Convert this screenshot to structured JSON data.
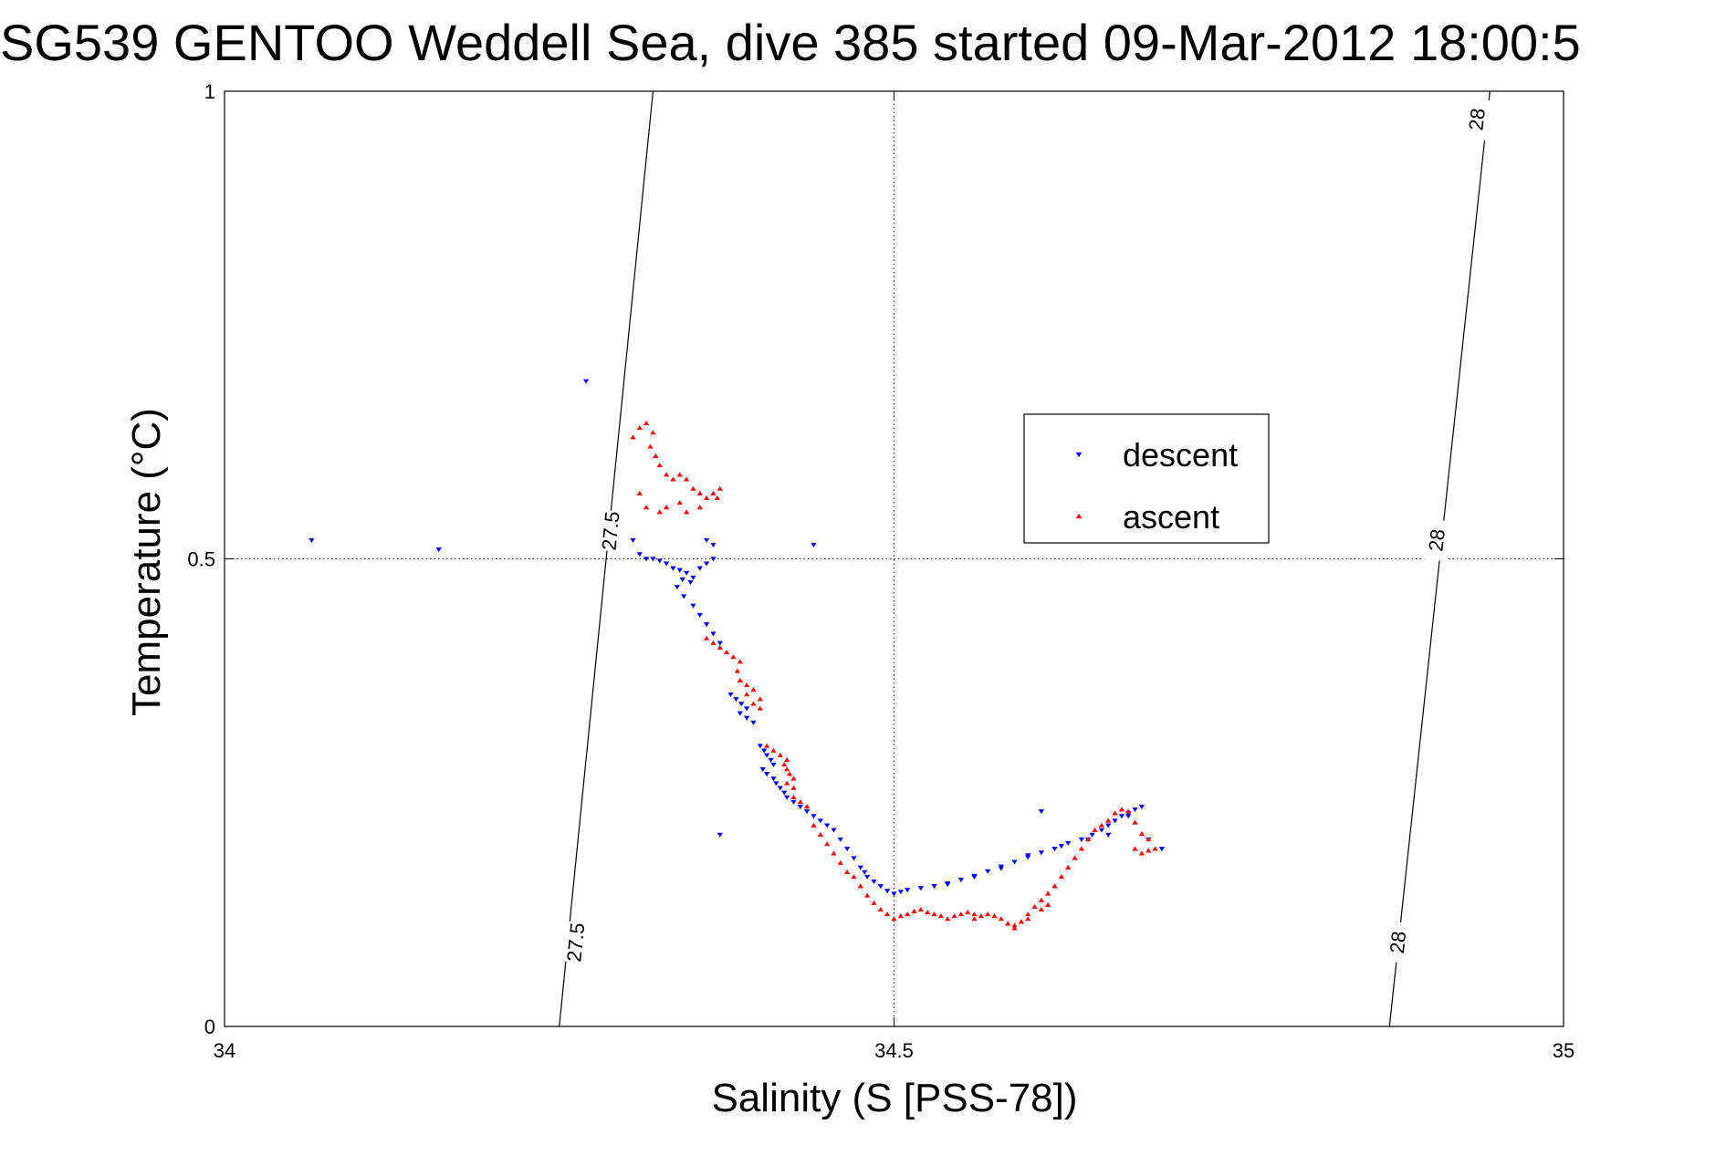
{
  "chart_data": {
    "type": "scatter",
    "title": "SG539 GENTOO Weddell Sea, dive 385 started 09-Mar-2012 18:00:5",
    "xlabel": "Salinity (S [PSS-78])",
    "ylabel": "Temperature (°C)",
    "xlim": [
      34,
      35
    ],
    "ylim": [
      0,
      1
    ],
    "xticks": [
      34,
      34.5,
      35
    ],
    "xtick_labels": [
      "34",
      "34.5",
      "35"
    ],
    "yticks": [
      0,
      0.5,
      1
    ],
    "ytick_labels": [
      "0",
      "0.5",
      "1"
    ],
    "grid": true,
    "legend_position": "upper-right inside plot",
    "isopycnals": [
      {
        "label": "27.5",
        "points": [
          [
            34.25,
            0
          ],
          [
            34.32,
            1
          ]
        ],
        "label_positions": [
          [
            34.262,
            0.09
          ],
          [
            34.288,
            0.53
          ]
        ]
      },
      {
        "label": "28",
        "points": [
          [
            34.87,
            0
          ],
          [
            34.945,
            1
          ]
        ],
        "label_positions": [
          [
            34.876,
            0.09
          ],
          [
            34.905,
            0.52
          ],
          [
            34.935,
            0.97
          ]
        ]
      }
    ],
    "series": [
      {
        "name": "descent",
        "color": "#0000ff",
        "marker": "triangle-down",
        "points": [
          [
            34.27,
            0.69
          ],
          [
            34.065,
            0.52
          ],
          [
            34.16,
            0.51
          ],
          [
            34.44,
            0.515
          ],
          [
            34.37,
            0.205
          ],
          [
            34.305,
            0.52
          ],
          [
            34.31,
            0.505
          ],
          [
            34.315,
            0.5
          ],
          [
            34.32,
            0.5
          ],
          [
            34.325,
            0.498
          ],
          [
            34.33,
            0.495
          ],
          [
            34.335,
            0.49
          ],
          [
            34.34,
            0.488
          ],
          [
            34.345,
            0.485
          ],
          [
            34.35,
            0.48
          ],
          [
            34.342,
            0.478
          ],
          [
            34.348,
            0.475
          ],
          [
            34.355,
            0.49
          ],
          [
            34.36,
            0.495
          ],
          [
            34.365,
            0.5
          ],
          [
            34.36,
            0.52
          ],
          [
            34.365,
            0.515
          ],
          [
            34.338,
            0.47
          ],
          [
            34.343,
            0.46
          ],
          [
            34.35,
            0.45
          ],
          [
            34.355,
            0.44
          ],
          [
            34.36,
            0.43
          ],
          [
            34.365,
            0.42
          ],
          [
            34.37,
            0.41
          ],
          [
            34.378,
            0.355
          ],
          [
            34.382,
            0.35
          ],
          [
            34.386,
            0.345
          ],
          [
            34.39,
            0.34
          ],
          [
            34.385,
            0.335
          ],
          [
            34.39,
            0.33
          ],
          [
            34.395,
            0.325
          ],
          [
            34.4,
            0.3
          ],
          [
            34.403,
            0.295
          ],
          [
            34.405,
            0.29
          ],
          [
            34.408,
            0.285
          ],
          [
            34.41,
            0.28
          ],
          [
            34.402,
            0.275
          ],
          [
            34.405,
            0.27
          ],
          [
            34.41,
            0.265
          ],
          [
            34.412,
            0.26
          ],
          [
            34.415,
            0.255
          ],
          [
            34.418,
            0.25
          ],
          [
            34.42,
            0.245
          ],
          [
            34.425,
            0.24
          ],
          [
            34.43,
            0.235
          ],
          [
            34.435,
            0.23
          ],
          [
            34.44,
            0.225
          ],
          [
            34.445,
            0.22
          ],
          [
            34.45,
            0.215
          ],
          [
            34.455,
            0.21
          ],
          [
            34.46,
            0.2
          ],
          [
            34.465,
            0.19
          ],
          [
            34.47,
            0.18
          ],
          [
            34.475,
            0.17
          ],
          [
            34.478,
            0.165
          ],
          [
            34.48,
            0.16
          ],
          [
            34.485,
            0.155
          ],
          [
            34.49,
            0.15
          ],
          [
            34.495,
            0.145
          ],
          [
            34.5,
            0.142
          ],
          [
            34.505,
            0.144
          ],
          [
            34.51,
            0.146
          ],
          [
            34.52,
            0.148
          ],
          [
            34.53,
            0.15
          ],
          [
            34.54,
            0.153
          ],
          [
            34.55,
            0.157
          ],
          [
            34.56,
            0.161
          ],
          [
            34.57,
            0.166
          ],
          [
            34.58,
            0.171
          ],
          [
            34.59,
            0.176
          ],
          [
            34.6,
            0.181
          ],
          [
            34.61,
            0.186
          ],
          [
            34.62,
            0.19
          ],
          [
            34.63,
            0.196
          ],
          [
            34.64,
            0.2
          ],
          [
            34.648,
            0.205
          ],
          [
            34.655,
            0.21
          ],
          [
            34.66,
            0.215
          ],
          [
            34.665,
            0.22
          ],
          [
            34.67,
            0.225
          ],
          [
            34.675,
            0.228
          ],
          [
            34.68,
            0.232
          ],
          [
            34.685,
            0.235
          ],
          [
            34.69,
            0.2
          ],
          [
            34.7,
            0.19
          ],
          [
            34.61,
            0.23
          ],
          [
            34.54,
            0.152
          ],
          [
            34.56,
            0.16
          ],
          [
            34.58,
            0.169
          ],
          [
            34.6,
            0.183
          ],
          [
            34.625,
            0.193
          ],
          [
            34.645,
            0.2
          ],
          [
            34.66,
            0.205
          ],
          [
            34.675,
            0.225
          ]
        ]
      },
      {
        "name": "ascent",
        "color": "#ff0000",
        "marker": "triangle-up",
        "points": [
          [
            34.31,
            0.64
          ],
          [
            34.315,
            0.645
          ],
          [
            34.32,
            0.635
          ],
          [
            34.305,
            0.63
          ],
          [
            34.318,
            0.62
          ],
          [
            34.322,
            0.61
          ],
          [
            34.325,
            0.6
          ],
          [
            34.33,
            0.59
          ],
          [
            34.335,
            0.585
          ],
          [
            34.34,
            0.59
          ],
          [
            34.345,
            0.585
          ],
          [
            34.35,
            0.575
          ],
          [
            34.355,
            0.57
          ],
          [
            34.36,
            0.565
          ],
          [
            34.365,
            0.57
          ],
          [
            34.37,
            0.575
          ],
          [
            34.368,
            0.565
          ],
          [
            34.34,
            0.56
          ],
          [
            34.33,
            0.555
          ],
          [
            34.325,
            0.55
          ],
          [
            34.345,
            0.55
          ],
          [
            34.355,
            0.555
          ],
          [
            34.31,
            0.57
          ],
          [
            34.315,
            0.555
          ],
          [
            34.36,
            0.415
          ],
          [
            34.365,
            0.41
          ],
          [
            34.37,
            0.405
          ],
          [
            34.375,
            0.4
          ],
          [
            34.38,
            0.395
          ],
          [
            34.385,
            0.39
          ],
          [
            34.383,
            0.38
          ],
          [
            34.385,
            0.37
          ],
          [
            34.39,
            0.365
          ],
          [
            34.395,
            0.36
          ],
          [
            34.39,
            0.355
          ],
          [
            34.4,
            0.35
          ],
          [
            34.395,
            0.345
          ],
          [
            34.4,
            0.34
          ],
          [
            34.405,
            0.3
          ],
          [
            34.41,
            0.295
          ],
          [
            34.415,
            0.29
          ],
          [
            34.42,
            0.285
          ],
          [
            34.418,
            0.28
          ],
          [
            34.42,
            0.275
          ],
          [
            34.422,
            0.27
          ],
          [
            34.425,
            0.265
          ],
          [
            34.42,
            0.26
          ],
          [
            34.425,
            0.255
          ],
          [
            34.425,
            0.245
          ],
          [
            34.43,
            0.24
          ],
          [
            34.435,
            0.235
          ],
          [
            34.44,
            0.215
          ],
          [
            34.445,
            0.205
          ],
          [
            34.45,
            0.195
          ],
          [
            34.455,
            0.185
          ],
          [
            34.46,
            0.175
          ],
          [
            34.465,
            0.165
          ],
          [
            34.47,
            0.16
          ],
          [
            34.475,
            0.15
          ],
          [
            34.48,
            0.14
          ],
          [
            34.485,
            0.132
          ],
          [
            34.49,
            0.125
          ],
          [
            34.495,
            0.12
          ],
          [
            34.5,
            0.115
          ],
          [
            34.505,
            0.118
          ],
          [
            34.51,
            0.12
          ],
          [
            34.515,
            0.123
          ],
          [
            34.52,
            0.125
          ],
          [
            34.525,
            0.122
          ],
          [
            34.53,
            0.12
          ],
          [
            34.535,
            0.118
          ],
          [
            34.54,
            0.115
          ],
          [
            34.545,
            0.118
          ],
          [
            34.55,
            0.12
          ],
          [
            34.555,
            0.122
          ],
          [
            34.56,
            0.12
          ],
          [
            34.565,
            0.118
          ],
          [
            34.57,
            0.12
          ],
          [
            34.575,
            0.118
          ],
          [
            34.58,
            0.115
          ],
          [
            34.585,
            0.11
          ],
          [
            34.59,
            0.108
          ],
          [
            34.595,
            0.112
          ],
          [
            34.6,
            0.12
          ],
          [
            34.605,
            0.128
          ],
          [
            34.61,
            0.135
          ],
          [
            34.615,
            0.142
          ],
          [
            34.62,
            0.15
          ],
          [
            34.625,
            0.16
          ],
          [
            34.63,
            0.17
          ],
          [
            34.635,
            0.18
          ],
          [
            34.64,
            0.19
          ],
          [
            34.645,
            0.2
          ],
          [
            34.65,
            0.21
          ],
          [
            34.655,
            0.215
          ],
          [
            34.66,
            0.22
          ],
          [
            34.665,
            0.228
          ],
          [
            34.67,
            0.232
          ],
          [
            34.675,
            0.23
          ],
          [
            34.68,
            0.218
          ],
          [
            34.685,
            0.206
          ],
          [
            34.69,
            0.2
          ],
          [
            34.695,
            0.19
          ],
          [
            34.68,
            0.19
          ],
          [
            34.685,
            0.185
          ],
          [
            34.69,
            0.188
          ],
          [
            34.61,
            0.125
          ],
          [
            34.615,
            0.13
          ],
          [
            34.6,
            0.115
          ],
          [
            34.59,
            0.105
          ],
          [
            34.56,
            0.115
          ]
        ]
      }
    ]
  }
}
